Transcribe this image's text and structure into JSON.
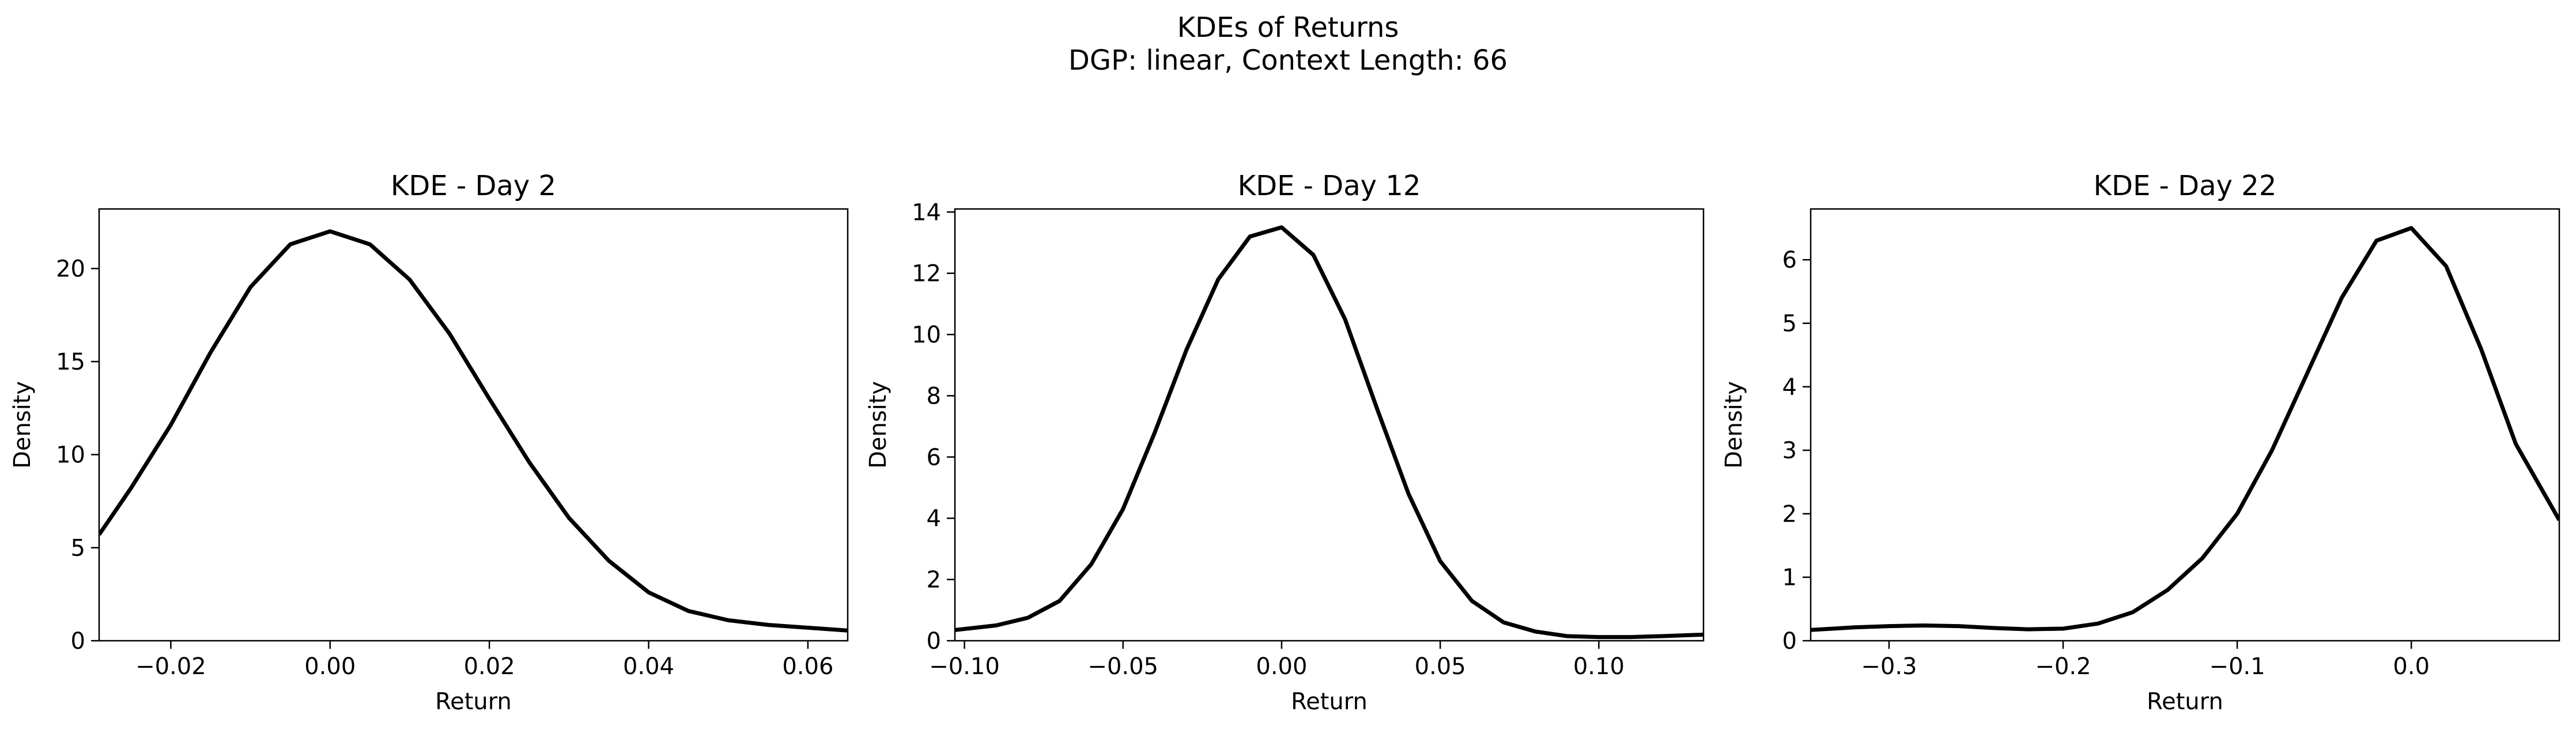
{
  "figure": {
    "title": "KDEs of Returns",
    "subtitle": "DGP: linear, Context Length: 66",
    "line_color": "#000000",
    "background": "#ffffff"
  },
  "chart_data": [
    {
      "type": "line",
      "title": "KDE - Day 2",
      "xlabel": "Return",
      "ylabel": "Density",
      "xlim": [
        -0.029,
        0.065
      ],
      "ylim": [
        0,
        23.2
      ],
      "xticks": [
        -0.02,
        0.0,
        0.02,
        0.04,
        0.06
      ],
      "xtick_labels": [
        "−0.02",
        "0.00",
        "0.02",
        "0.04",
        "0.06"
      ],
      "yticks": [
        0,
        5,
        10,
        15,
        20
      ],
      "ytick_labels": [
        "0",
        "5",
        "10",
        "15",
        "20"
      ],
      "series": [
        {
          "name": "KDE",
          "x": [
            -0.029,
            -0.025,
            -0.02,
            -0.015,
            -0.01,
            -0.005,
            0.0,
            0.005,
            0.01,
            0.015,
            0.02,
            0.025,
            0.03,
            0.035,
            0.04,
            0.045,
            0.05,
            0.055,
            0.06,
            0.065
          ],
          "y": [
            5.7,
            8.2,
            11.6,
            15.5,
            19.0,
            21.3,
            22.0,
            21.3,
            19.4,
            16.5,
            13.0,
            9.6,
            6.6,
            4.3,
            2.6,
            1.6,
            1.1,
            0.85,
            0.7,
            0.55
          ]
        }
      ]
    },
    {
      "type": "line",
      "title": "KDE - Day 12",
      "xlabel": "Return",
      "ylabel": "Density",
      "xlim": [
        -0.103,
        0.133
      ],
      "ylim": [
        0,
        14.1
      ],
      "xticks": [
        -0.1,
        -0.05,
        0.0,
        0.05,
        0.1
      ],
      "xtick_labels": [
        "−0.10",
        "−0.05",
        "0.00",
        "0.05",
        "0.10"
      ],
      "yticks": [
        0,
        2,
        4,
        6,
        8,
        10,
        12,
        14
      ],
      "ytick_labels": [
        "0",
        "2",
        "4",
        "6",
        "8",
        "10",
        "12",
        "14"
      ],
      "series": [
        {
          "name": "KDE",
          "x": [
            -0.103,
            -0.09,
            -0.08,
            -0.07,
            -0.06,
            -0.05,
            -0.04,
            -0.03,
            -0.02,
            -0.01,
            0.0,
            0.01,
            0.02,
            0.03,
            0.04,
            0.05,
            0.06,
            0.07,
            0.08,
            0.09,
            0.1,
            0.11,
            0.12,
            0.133
          ],
          "y": [
            0.35,
            0.5,
            0.75,
            1.3,
            2.5,
            4.3,
            6.8,
            9.5,
            11.8,
            13.2,
            13.5,
            12.6,
            10.5,
            7.6,
            4.8,
            2.6,
            1.3,
            0.6,
            0.3,
            0.15,
            0.12,
            0.12,
            0.15,
            0.2
          ]
        }
      ]
    },
    {
      "type": "line",
      "title": "KDE - Day 22",
      "xlabel": "Return",
      "ylabel": "Density",
      "xlim": [
        -0.345,
        0.085
      ],
      "ylim": [
        0,
        6.8
      ],
      "xticks": [
        -0.3,
        -0.2,
        -0.1,
        0.0
      ],
      "xtick_labels": [
        "−0.3",
        "−0.2",
        "−0.1",
        "0.0"
      ],
      "yticks": [
        0,
        1,
        2,
        3,
        4,
        5,
        6
      ],
      "ytick_labels": [
        "0",
        "1",
        "2",
        "3",
        "4",
        "5",
        "6"
      ],
      "series": [
        {
          "name": "KDE",
          "x": [
            -0.345,
            -0.32,
            -0.3,
            -0.28,
            -0.26,
            -0.24,
            -0.22,
            -0.2,
            -0.18,
            -0.16,
            -0.14,
            -0.12,
            -0.1,
            -0.08,
            -0.06,
            -0.04,
            -0.02,
            0.0,
            0.02,
            0.04,
            0.06,
            0.085
          ],
          "y": [
            0.17,
            0.21,
            0.23,
            0.24,
            0.23,
            0.2,
            0.18,
            0.19,
            0.27,
            0.45,
            0.8,
            1.3,
            2.0,
            3.0,
            4.2,
            5.4,
            6.3,
            6.5,
            5.9,
            4.6,
            3.1,
            1.9
          ]
        }
      ]
    }
  ]
}
